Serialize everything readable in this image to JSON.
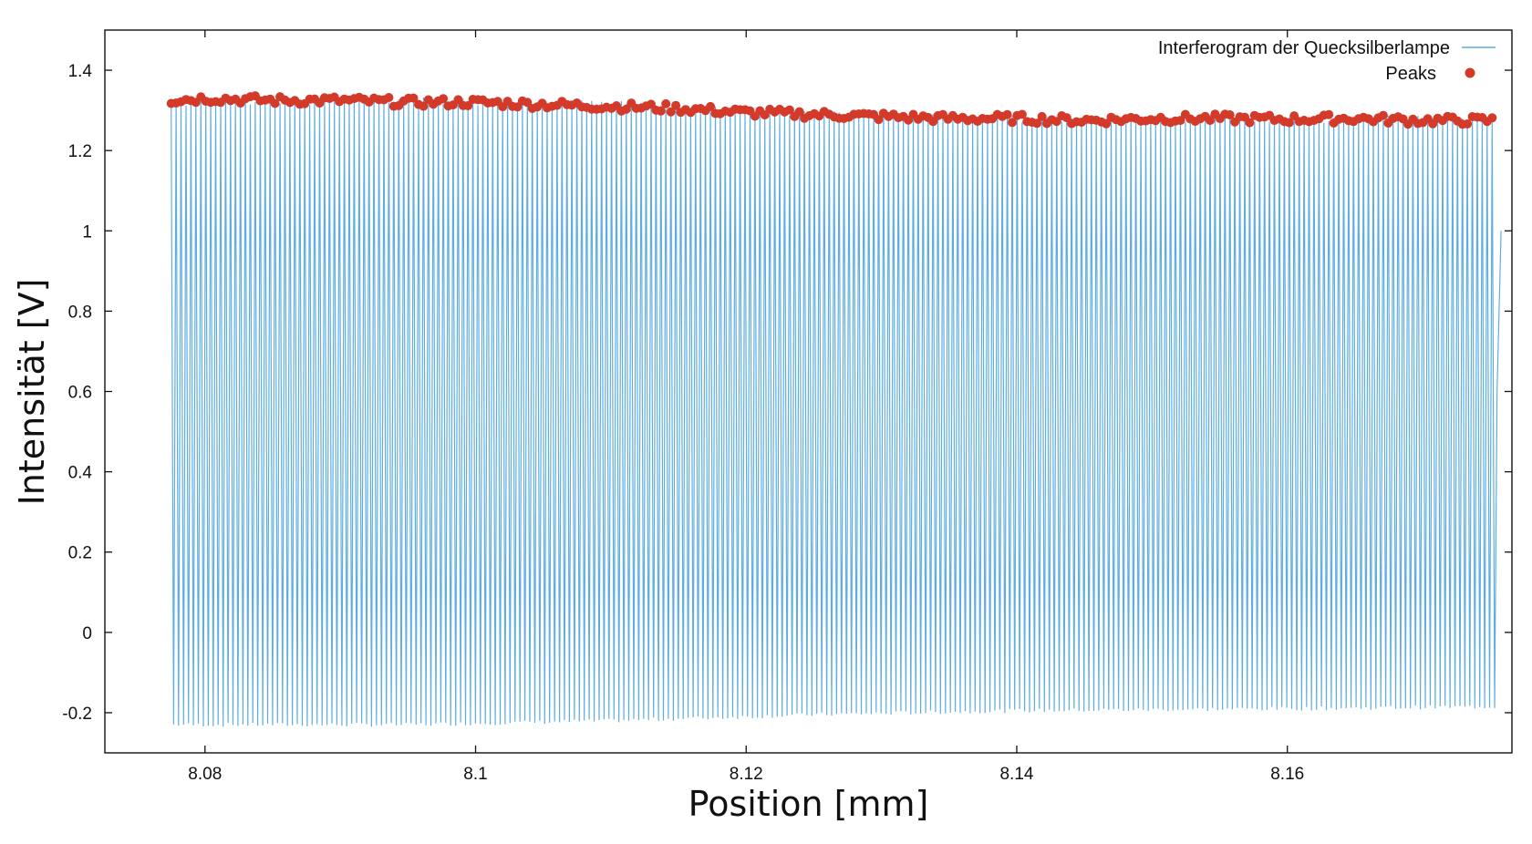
{
  "chart_data": {
    "type": "line",
    "xlabel": "Position [mm]",
    "ylabel": "Intensität [V]",
    "xlim": [
      8.0726,
      8.1766
    ],
    "ylim": [
      -0.3,
      1.5
    ],
    "xticks": [
      8.08,
      8.1,
      8.12,
      8.14,
      8.16
    ],
    "xtick_labels": [
      "8.08",
      "8.1",
      "8.12",
      "8.14",
      "8.16"
    ],
    "yticks": [
      -0.2,
      0,
      0.2,
      0.4,
      0.6,
      0.8,
      1,
      1.2,
      1.4
    ],
    "ytick_labels": [
      "-0.2",
      "0",
      "0.2",
      "0.4",
      "0.6",
      "0.8",
      "1",
      "1.2",
      "1.4"
    ],
    "grid": false,
    "legend_position": "top-right",
    "series": [
      {
        "name": "Interferogram der Quecksilberlampe",
        "kind": "line",
        "color": "#5dade2",
        "x_start": 8.0775,
        "x_end": 8.1755,
        "peak_count": 268,
        "max_envelope": {
          "x": [
            8.0775,
            8.095,
            8.11,
            8.125,
            8.14,
            8.16,
            8.1755
          ],
          "y": [
            1.32,
            1.325,
            1.315,
            1.29,
            1.28,
            1.28,
            1.275
          ]
        },
        "min_envelope": {
          "x": [
            8.0775,
            8.095,
            8.11,
            8.125,
            8.14,
            8.16,
            8.1755
          ],
          "y": [
            -0.23,
            -0.23,
            -0.22,
            -0.205,
            -0.195,
            -0.19,
            -0.185
          ]
        },
        "end_value": 1.0
      },
      {
        "name": "Peaks",
        "kind": "scatter",
        "color": "#d43a2a",
        "x": [
          8.0775,
          8.08,
          8.085,
          8.09,
          8.095,
          8.1,
          8.105,
          8.11,
          8.115,
          8.12,
          8.125,
          8.13,
          8.135,
          8.14,
          8.145,
          8.15,
          8.155,
          8.16,
          8.165,
          8.17,
          8.175
        ],
        "y": [
          1.325,
          1.33,
          1.325,
          1.325,
          1.32,
          1.32,
          1.315,
          1.31,
          1.305,
          1.295,
          1.29,
          1.285,
          1.28,
          1.28,
          1.275,
          1.28,
          1.28,
          1.278,
          1.28,
          1.275,
          1.275
        ]
      }
    ]
  }
}
